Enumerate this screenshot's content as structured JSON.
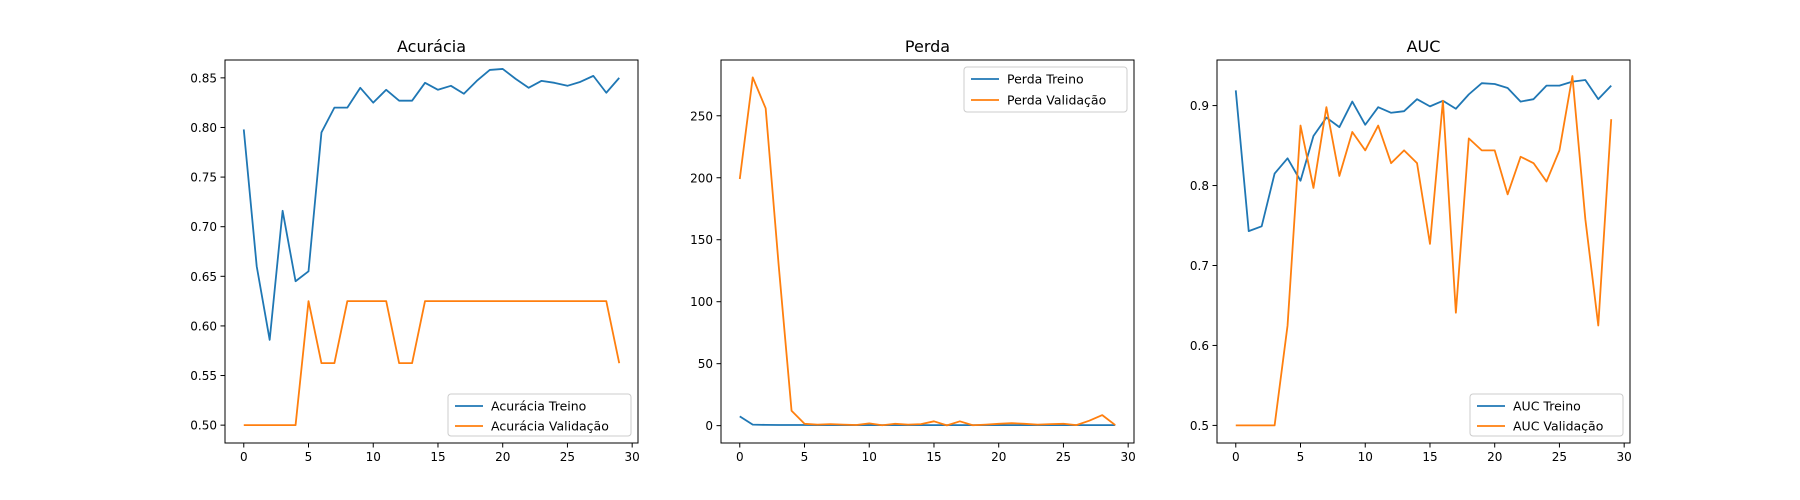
{
  "chart_data": [
    {
      "type": "line",
      "title": "Acurácia",
      "xlabel": "",
      "ylabel": "",
      "xlim": [
        -1.45,
        30.45
      ],
      "ylim": [
        0.482,
        0.868
      ],
      "xticks": [
        0,
        5,
        10,
        15,
        20,
        25,
        30
      ],
      "yticks": [
        0.5,
        0.55,
        0.6,
        0.65,
        0.7,
        0.75,
        0.8,
        0.85
      ],
      "ytick_labels": [
        "0.50",
        "0.55",
        "0.60",
        "0.65",
        "0.70",
        "0.75",
        "0.80",
        "0.85"
      ],
      "legend_position": "lower-right",
      "x": [
        0,
        1,
        2,
        3,
        4,
        5,
        6,
        7,
        8,
        9,
        10,
        11,
        12,
        13,
        14,
        15,
        16,
        17,
        18,
        19,
        20,
        21,
        22,
        23,
        24,
        25,
        26,
        27,
        28,
        29
      ],
      "series": [
        {
          "name": "Acurácia Treino",
          "color": "#1f77b4",
          "values": [
            0.798,
            0.66,
            0.586,
            0.716,
            0.645,
            0.655,
            0.795,
            0.82,
            0.82,
            0.84,
            0.825,
            0.838,
            0.827,
            0.827,
            0.845,
            0.838,
            0.842,
            0.834,
            0.847,
            0.858,
            0.859,
            0.849,
            0.84,
            0.847,
            0.845,
            0.842,
            0.846,
            0.852,
            0.835,
            0.85
          ]
        },
        {
          "name": "Acurácia Validação",
          "color": "#ff7f0e",
          "values": [
            0.5,
            0.5,
            0.5,
            0.5,
            0.5,
            0.625,
            0.5625,
            0.5625,
            0.625,
            0.625,
            0.625,
            0.625,
            0.5625,
            0.5625,
            0.625,
            0.625,
            0.625,
            0.625,
            0.625,
            0.625,
            0.625,
            0.625,
            0.625,
            0.625,
            0.625,
            0.625,
            0.625,
            0.625,
            0.625,
            0.5625
          ]
        }
      ]
    },
    {
      "type": "line",
      "title": "Perda",
      "xlabel": "",
      "ylabel": "",
      "xlim": [
        -1.45,
        30.45
      ],
      "ylim": [
        -14,
        295
      ],
      "xticks": [
        0,
        5,
        10,
        15,
        20,
        25,
        30
      ],
      "yticks": [
        0,
        50,
        100,
        150,
        200,
        250
      ],
      "ytick_labels": [
        "0",
        "50",
        "100",
        "150",
        "200",
        "250"
      ],
      "legend_position": "upper-right",
      "x": [
        0,
        1,
        2,
        3,
        4,
        5,
        6,
        7,
        8,
        9,
        10,
        11,
        12,
        13,
        14,
        15,
        16,
        17,
        18,
        19,
        20,
        21,
        22,
        23,
        24,
        25,
        26,
        27,
        28,
        29
      ],
      "series": [
        {
          "name": "Perda Treino",
          "color": "#1f77b4",
          "values": [
            7.5,
            0.8,
            0.6,
            0.5,
            0.5,
            0.5,
            0.4,
            0.4,
            0.4,
            0.4,
            0.4,
            0.4,
            0.4,
            0.4,
            0.4,
            0.4,
            0.4,
            0.4,
            0.4,
            0.4,
            0.4,
            0.4,
            0.4,
            0.4,
            0.4,
            0.4,
            0.4,
            0.4,
            0.4,
            0.4
          ]
        },
        {
          "name": "Perda Validação",
          "color": "#ff7f0e",
          "values": [
            199,
            281,
            256,
            130,
            12,
            1.5,
            0.8,
            1.2,
            0.8,
            0.5,
            1.8,
            0.3,
            1.5,
            0.8,
            1.2,
            3.5,
            0.2,
            3.5,
            0.3,
            0.8,
            1.5,
            2.0,
            1.5,
            0.8,
            1.2,
            1.5,
            0.4,
            4.0,
            8.5,
            0.5
          ]
        }
      ]
    },
    {
      "type": "line",
      "title": "AUC",
      "xlabel": "",
      "ylabel": "",
      "xlim": [
        -1.45,
        30.45
      ],
      "ylim": [
        0.478,
        0.957
      ],
      "xticks": [
        0,
        5,
        10,
        15,
        20,
        25,
        30
      ],
      "yticks": [
        0.5,
        0.6,
        0.7,
        0.8,
        0.9
      ],
      "ytick_labels": [
        "0.5",
        "0.6",
        "0.7",
        "0.8",
        "0.9"
      ],
      "legend_position": "lower-right",
      "x": [
        0,
        1,
        2,
        3,
        4,
        5,
        6,
        7,
        8,
        9,
        10,
        11,
        12,
        13,
        14,
        15,
        16,
        17,
        18,
        19,
        20,
        21,
        22,
        23,
        24,
        25,
        26,
        27,
        28,
        29
      ],
      "series": [
        {
          "name": "AUC Treino",
          "color": "#1f77b4",
          "values": [
            0.919,
            0.743,
            0.749,
            0.815,
            0.834,
            0.806,
            0.862,
            0.885,
            0.873,
            0.905,
            0.876,
            0.898,
            0.891,
            0.893,
            0.908,
            0.899,
            0.906,
            0.896,
            0.914,
            0.928,
            0.927,
            0.922,
            0.905,
            0.908,
            0.925,
            0.925,
            0.93,
            0.932,
            0.908,
            0.925
          ]
        },
        {
          "name": "AUC Validação",
          "color": "#ff7f0e",
          "values": [
            0.5,
            0.5,
            0.5,
            0.5,
            0.625,
            0.875,
            0.797,
            0.898,
            0.812,
            0.867,
            0.844,
            0.875,
            0.828,
            0.844,
            0.828,
            0.727,
            0.906,
            0.641,
            0.859,
            0.844,
            0.844,
            0.789,
            0.836,
            0.828,
            0.805,
            0.844,
            0.937,
            0.758,
            0.625,
            0.883
          ]
        }
      ]
    }
  ]
}
